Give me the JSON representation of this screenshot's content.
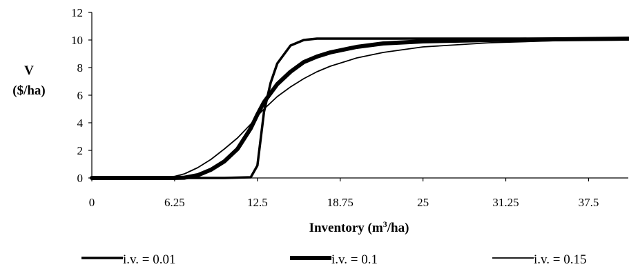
{
  "chart_data": {
    "type": "line",
    "xlabel_prefix": "Inventory (m",
    "xlabel_sup": "3",
    "xlabel_suffix": "/ha)",
    "ylabel_line1": "V",
    "ylabel_line2": "($/ha)",
    "xlim": [
      0,
      40.5
    ],
    "ylim": [
      0,
      12
    ],
    "x_ticks": [
      0,
      6.25,
      12.5,
      18.75,
      25,
      31.25,
      37.5
    ],
    "x_tick_labels": [
      "0",
      "6.25",
      "12.5",
      "18.75",
      "25",
      "31.25",
      "37.5"
    ],
    "y_ticks": [
      0,
      2,
      4,
      6,
      8,
      10,
      12
    ],
    "y_tick_labels": [
      "0",
      "2",
      "4",
      "6",
      "8",
      "10",
      "12"
    ],
    "grid": false,
    "legend_placement": "bottom",
    "series": [
      {
        "name": "i.v. = 0.01",
        "color": "#000000",
        "line_weight": "medium",
        "x": [
          0,
          10,
          12,
          12.5,
          13,
          13.5,
          14,
          15,
          16,
          17,
          18,
          20,
          25,
          30,
          35,
          40.5
        ],
        "y": [
          0,
          0,
          0.05,
          0.9,
          4.8,
          6.9,
          8.3,
          9.6,
          10.0,
          10.1,
          10.1,
          10.1,
          10.1,
          10.1,
          10.1,
          10.1
        ]
      },
      {
        "name": "i.v. = 0.1",
        "color": "#000000",
        "line_weight": "thick",
        "x": [
          0,
          6,
          7,
          8,
          9,
          10,
          11,
          12,
          12.5,
          13,
          14,
          15,
          16,
          17,
          18,
          20,
          22,
          25,
          30,
          35,
          40.5
        ],
        "y": [
          0,
          0,
          0.02,
          0.2,
          0.6,
          1.2,
          2.1,
          3.6,
          4.6,
          5.5,
          6.8,
          7.7,
          8.4,
          8.8,
          9.1,
          9.5,
          9.75,
          9.9,
          10.0,
          10.05,
          10.1
        ]
      },
      {
        "name": "i.v. = 0.15",
        "color": "#000000",
        "line_weight": "thin",
        "x": [
          0,
          5,
          6,
          7,
          8,
          9,
          10,
          11,
          12,
          12.5,
          13,
          14,
          15,
          16,
          17,
          18,
          20,
          22,
          25,
          30,
          35,
          40.5
        ],
        "y": [
          0,
          0,
          0.05,
          0.3,
          0.75,
          1.35,
          2.1,
          2.9,
          3.9,
          4.5,
          5.0,
          5.9,
          6.6,
          7.2,
          7.7,
          8.1,
          8.7,
          9.1,
          9.5,
          9.8,
          9.95,
          10.05
        ]
      }
    ]
  }
}
